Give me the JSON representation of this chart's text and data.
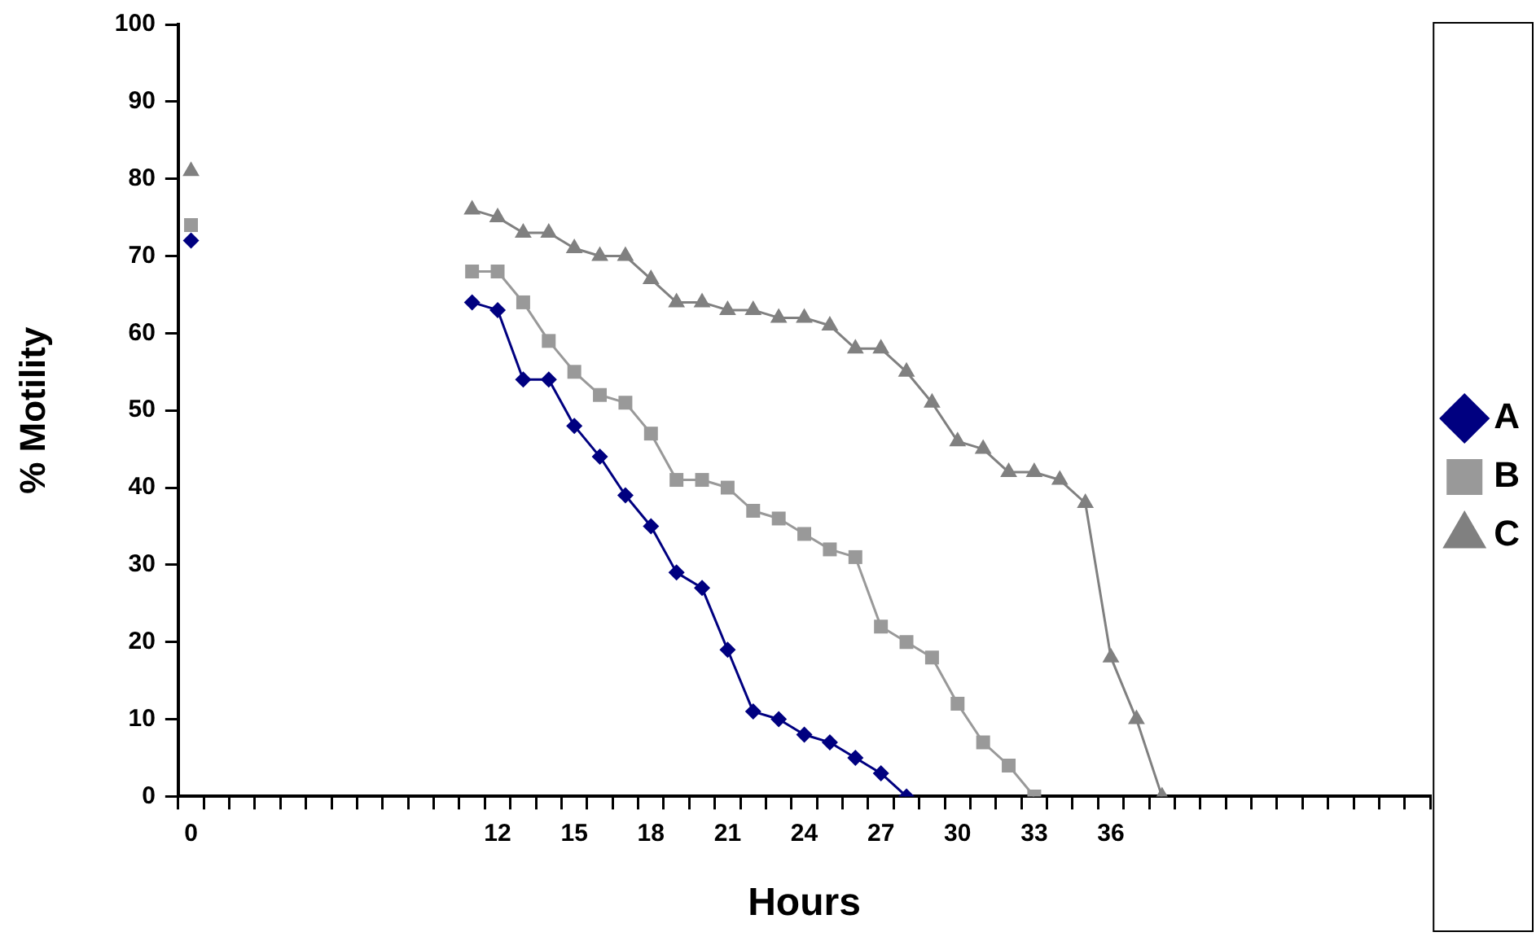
{
  "chart_data": {
    "type": "line",
    "xlabel": "Hours",
    "ylabel": "% Motility",
    "categories": [
      "0",
      null,
      null,
      null,
      null,
      null,
      null,
      null,
      null,
      null,
      null,
      null,
      "12",
      null,
      null,
      "15",
      null,
      null,
      "18",
      null,
      null,
      "21",
      null,
      null,
      "24",
      null,
      null,
      "27",
      null,
      null,
      "30",
      null,
      null,
      "33",
      null,
      null,
      "36",
      null,
      null,
      null,
      null,
      null,
      null,
      null,
      null,
      null,
      null,
      null,
      null
    ],
    "series": [
      {
        "name": "A",
        "color": "#000080",
        "marker": "diamond",
        "values": [
          72,
          null,
          null,
          null,
          null,
          null,
          null,
          null,
          null,
          null,
          null,
          64,
          63,
          54,
          54,
          48,
          44,
          39,
          35,
          29,
          27,
          19,
          11,
          10,
          8,
          7,
          5,
          3,
          0,
          null,
          null,
          null,
          null,
          null,
          null,
          null,
          null,
          null,
          null,
          null,
          null,
          null,
          null,
          null,
          null,
          null,
          null,
          null,
          null
        ]
      },
      {
        "name": "B",
        "color": "#999999",
        "marker": "square",
        "values": [
          74,
          null,
          null,
          null,
          null,
          null,
          null,
          null,
          null,
          null,
          null,
          68,
          68,
          64,
          59,
          55,
          52,
          51,
          47,
          41,
          41,
          40,
          37,
          36,
          34,
          32,
          31,
          22,
          20,
          18,
          12,
          7,
          4,
          0,
          null,
          null,
          null,
          null,
          null,
          null,
          null,
          null,
          null,
          null,
          null,
          null,
          null,
          null,
          null
        ]
      },
      {
        "name": "C",
        "color": "#808080",
        "marker": "triangle",
        "values": [
          81,
          null,
          null,
          null,
          null,
          null,
          null,
          null,
          null,
          null,
          null,
          76,
          75,
          73,
          73,
          71,
          70,
          70,
          67,
          64,
          64,
          63,
          63,
          62,
          62,
          61,
          58,
          58,
          55,
          51,
          46,
          45,
          42,
          42,
          41,
          38,
          18,
          10,
          0,
          null,
          null,
          null,
          null,
          null,
          null,
          null,
          null,
          null,
          null
        ]
      }
    ],
    "ylim": [
      0,
      100
    ],
    "yticks": [
      0,
      10,
      20,
      30,
      40,
      50,
      60,
      70,
      80,
      90,
      100
    ],
    "grid": false,
    "legend": "right",
    "line_style": "solid"
  }
}
